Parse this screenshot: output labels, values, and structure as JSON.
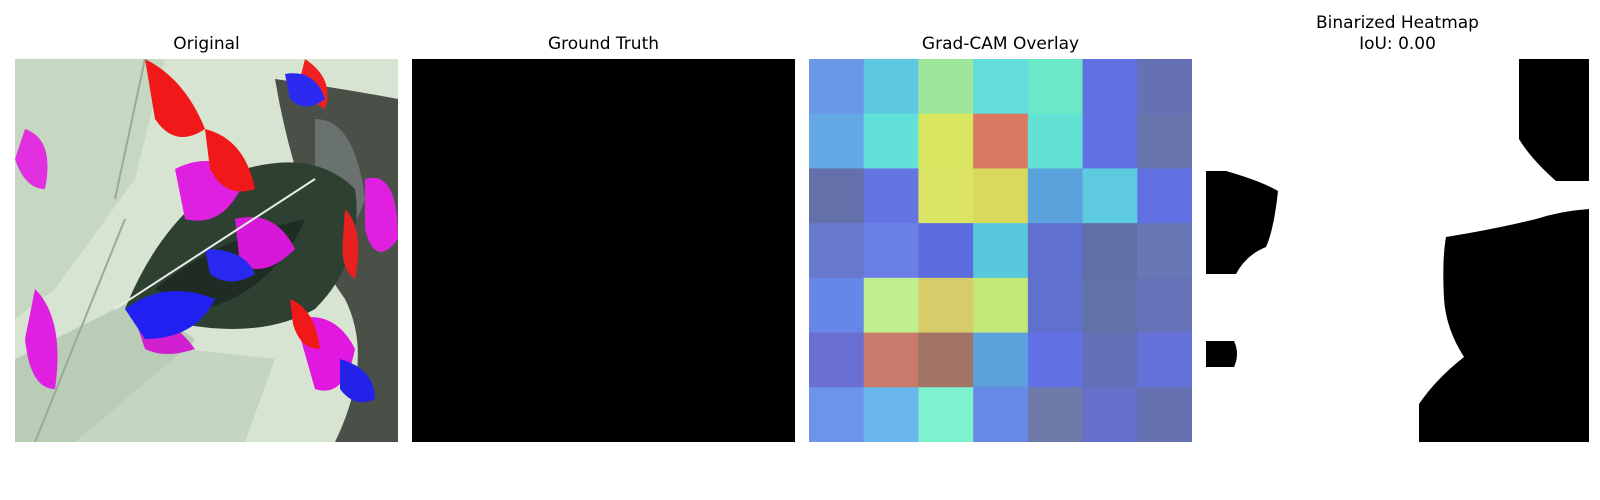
{
  "panels": [
    {
      "title": "Original"
    },
    {
      "title": "Ground Truth"
    },
    {
      "title": "Grad-CAM Overlay"
    },
    {
      "title": "Binarized Heatmap",
      "subtitle": "IoU: 0.00"
    }
  ],
  "gradcam_grid": [
    [
      "#6a98e6",
      "#5ec8e0",
      "#9ee69a",
      "#62dcdc",
      "#6ae8c8",
      "#6070e0",
      "#6670b4"
    ],
    [
      "#64a8e6",
      "#62e0da",
      "#d8e660",
      "#da7862",
      "#62e2d2",
      "#6272e2",
      "#6874ac"
    ],
    [
      "#6470aa",
      "#6474e2",
      "#dce466",
      "#d8da5e",
      "#5aa2dc",
      "#5ecae0",
      "#6070e2"
    ],
    [
      "#6878cc",
      "#6a80e8",
      "#5c6cde",
      "#5ac8dc",
      "#6070d0",
      "#6070a6",
      "#6878b4"
    ],
    [
      "#6686e8",
      "#c0f08e",
      "#d6cc6a",
      "#c2e87a",
      "#6070cc",
      "#6272a8",
      "#6672b8"
    ],
    [
      "#6a70d2",
      "#c87a6c",
      "#a27466",
      "#5ca0dc",
      "#6272e6",
      "#6270b8",
      "#6472da"
    ],
    [
      "#6c94e8",
      "#6ab6ee",
      "#7ef2ce",
      "#6888e6",
      "#6e7aa8",
      "#6470ca",
      "#6672b0"
    ]
  ],
  "colors": {
    "ground_truth": "#000000",
    "binary_fg": "#000000",
    "binary_bg": "#ffffff"
  }
}
